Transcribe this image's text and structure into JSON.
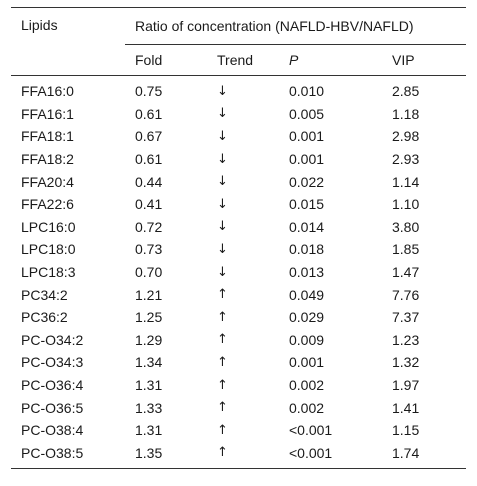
{
  "table": {
    "lipids_header": "Lipids",
    "group_header": "Ratio of concentration (NAFLD-HBV/NAFLD)",
    "sub_headers": {
      "fold": "Fold",
      "trend": "Trend",
      "p": "P",
      "vip": "VIP"
    },
    "rows": [
      {
        "lipid": "FFA16:0",
        "fold": "0.75",
        "trend": "↓",
        "p": "0.010",
        "vip": "2.85"
      },
      {
        "lipid": "FFA16:1",
        "fold": "0.61",
        "trend": "↓",
        "p": "0.005",
        "vip": "1.18"
      },
      {
        "lipid": "FFA18:1",
        "fold": "0.67",
        "trend": "↓",
        "p": "0.001",
        "vip": "2.98"
      },
      {
        "lipid": "FFA18:2",
        "fold": "0.61",
        "trend": "↓",
        "p": "0.001",
        "vip": "2.93"
      },
      {
        "lipid": "FFA20:4",
        "fold": "0.44",
        "trend": "↓",
        "p": "0.022",
        "vip": "1.14"
      },
      {
        "lipid": "FFA22:6",
        "fold": "0.41",
        "trend": "↓",
        "p": "0.015",
        "vip": "1.10"
      },
      {
        "lipid": "LPC16:0",
        "fold": "0.72",
        "trend": "↓",
        "p": "0.014",
        "vip": "3.80"
      },
      {
        "lipid": "LPC18:0",
        "fold": "0.73",
        "trend": "↓",
        "p": "0.018",
        "vip": "1.85"
      },
      {
        "lipid": "LPC18:3",
        "fold": "0.70",
        "trend": "↓",
        "p": "0.013",
        "vip": "1.47"
      },
      {
        "lipid": "PC34:2",
        "fold": "1.21",
        "trend": "↑",
        "p": "0.049",
        "vip": "7.76"
      },
      {
        "lipid": "PC36:2",
        "fold": "1.25",
        "trend": "↑",
        "p": "0.029",
        "vip": "7.37"
      },
      {
        "lipid": "PC-O34:2",
        "fold": "1.29",
        "trend": "↑",
        "p": "0.009",
        "vip": "1.23"
      },
      {
        "lipid": "PC-O34:3",
        "fold": "1.34",
        "trend": "↑",
        "p": "0.001",
        "vip": "1.32"
      },
      {
        "lipid": "PC-O36:4",
        "fold": "1.31",
        "trend": "↑",
        "p": "0.002",
        "vip": "1.97"
      },
      {
        "lipid": "PC-O36:5",
        "fold": "1.33",
        "trend": "↑",
        "p": "0.002",
        "vip": "1.41"
      },
      {
        "lipid": "PC-O38:4",
        "fold": "1.31",
        "trend": "↑",
        "p": "<0.001",
        "vip": "1.15"
      },
      {
        "lipid": "PC-O38:5",
        "fold": "1.35",
        "trend": "↑",
        "p": "<0.001",
        "vip": "1.74"
      }
    ]
  }
}
